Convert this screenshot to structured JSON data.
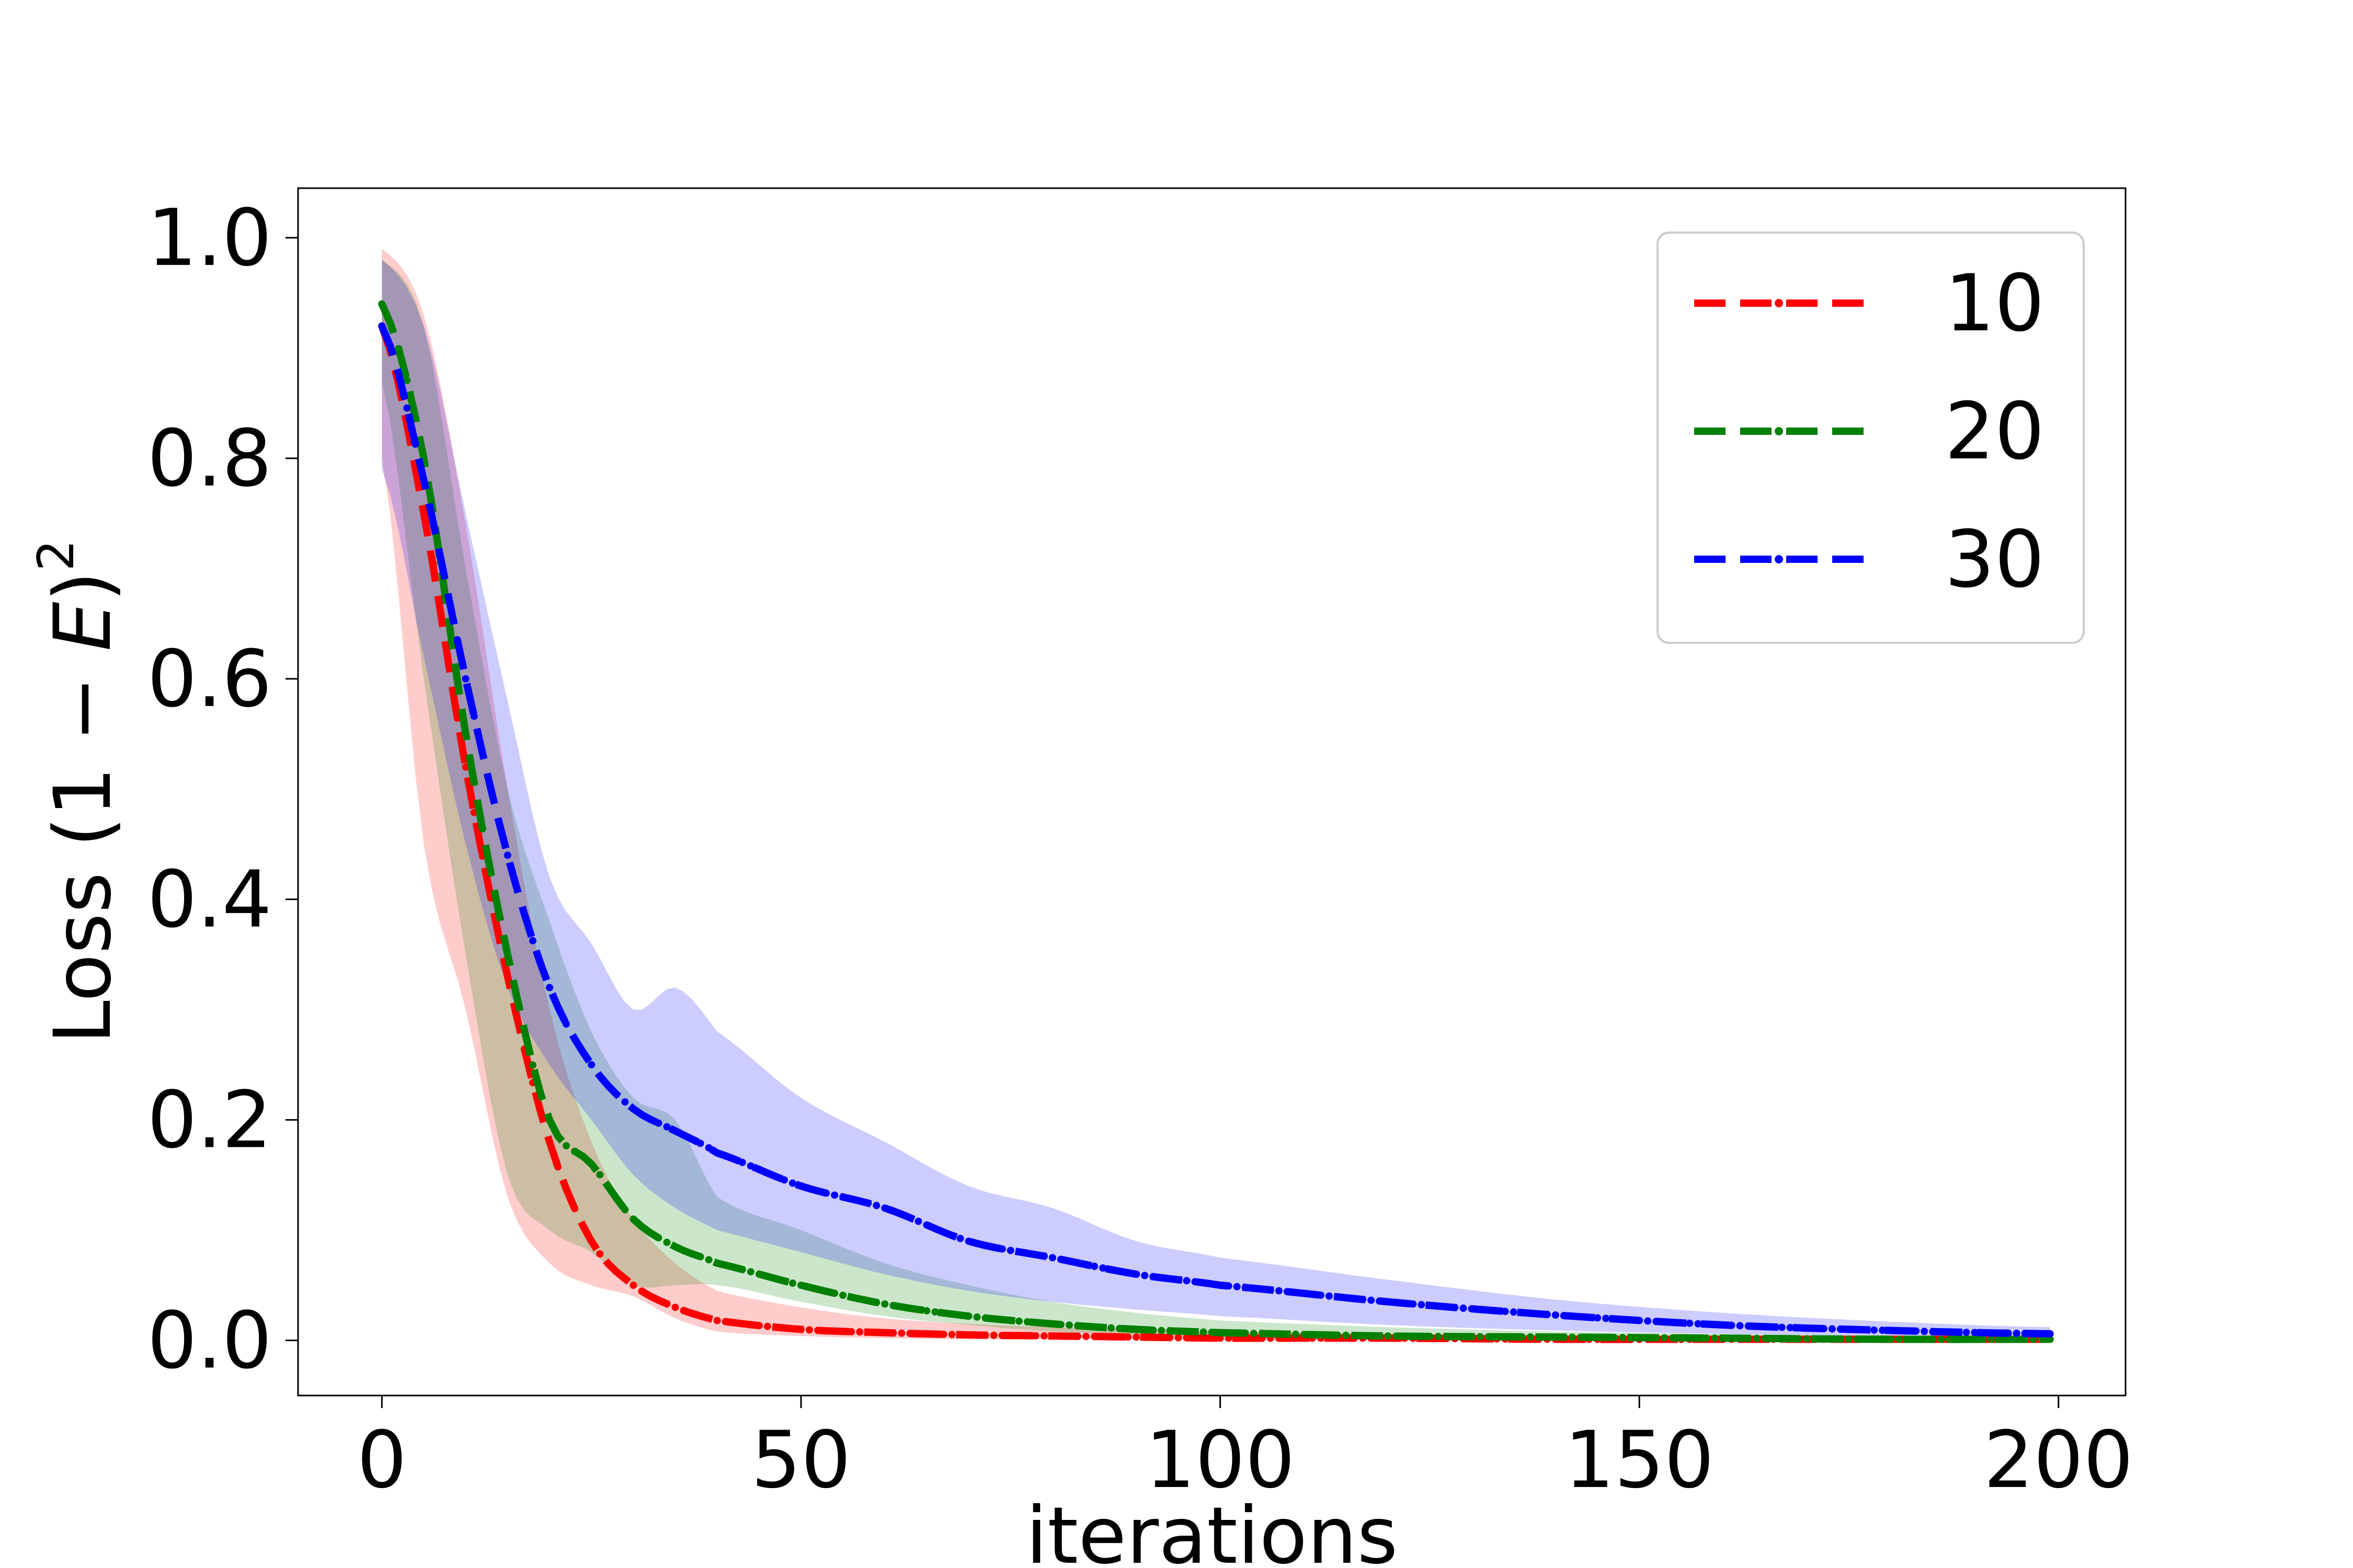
{
  "chart_data": {
    "type": "line",
    "xlabel": "iterations",
    "ylabel": "Loss (1 − E)²",
    "ylabel_parts": [
      "Loss (1 − ",
      "E",
      ")",
      "2"
    ],
    "xlim": [
      -10,
      208
    ],
    "ylim": [
      -0.05,
      1.045
    ],
    "xticks": [
      0,
      50,
      100,
      150,
      200
    ],
    "yticks": [
      0.0,
      0.2,
      0.4,
      0.6,
      0.8,
      1.0
    ],
    "xtick_labels": [
      "0",
      "50",
      "100",
      "150",
      "200"
    ],
    "ytick_labels": [
      "0.0",
      "0.2",
      "0.4",
      "0.6",
      "0.8",
      "1.0"
    ],
    "grid": false,
    "legend": {
      "placement": "top-right"
    },
    "x": [
      0,
      5,
      10,
      15,
      20,
      25,
      30,
      35,
      40,
      50,
      60,
      70,
      80,
      90,
      100,
      120,
      140,
      160,
      180,
      199
    ],
    "series": [
      {
        "name": "10",
        "color": "#ff0000",
        "fill": "#ff0000",
        "values": [
          0.92,
          0.75,
          0.52,
          0.33,
          0.18,
          0.09,
          0.05,
          0.03,
          0.018,
          0.01,
          0.007,
          0.005,
          0.004,
          0.003,
          0.002,
          0.002,
          0.001,
          0.001,
          0.001,
          0.001
        ],
        "upper": [
          0.99,
          0.93,
          0.74,
          0.5,
          0.3,
          0.18,
          0.11,
          0.07,
          0.045,
          0.03,
          0.02,
          0.015,
          0.012,
          0.01,
          0.008,
          0.006,
          0.005,
          0.004,
          0.003,
          0.003
        ],
        "lower": [
          0.8,
          0.45,
          0.3,
          0.13,
          0.07,
          0.05,
          0.04,
          0.02,
          0.008,
          0.004,
          0.002,
          0.001,
          0.001,
          0.001,
          0.0,
          0.0,
          0.0,
          0.0,
          0.0,
          0.0
        ]
      },
      {
        "name": "20",
        "color": "#008000",
        "fill": "#008000",
        "values": [
          0.94,
          0.8,
          0.55,
          0.35,
          0.2,
          0.16,
          0.11,
          0.085,
          0.07,
          0.05,
          0.033,
          0.022,
          0.015,
          0.01,
          0.007,
          0.004,
          0.003,
          0.002,
          0.001,
          0.001
        ],
        "upper": [
          0.98,
          0.92,
          0.7,
          0.5,
          0.38,
          0.28,
          0.22,
          0.2,
          0.13,
          0.1,
          0.07,
          0.05,
          0.035,
          0.025,
          0.018,
          0.012,
          0.008,
          0.006,
          0.004,
          0.003
        ],
        "lower": [
          0.87,
          0.6,
          0.35,
          0.15,
          0.1,
          0.08,
          0.05,
          0.05,
          0.05,
          0.035,
          0.022,
          0.014,
          0.008,
          0.005,
          0.003,
          0.001,
          0.001,
          0.0,
          0.0,
          0.0
        ]
      },
      {
        "name": "30",
        "color": "#0000ff",
        "fill": "#0000ff",
        "values": [
          0.92,
          0.78,
          0.6,
          0.44,
          0.32,
          0.25,
          0.21,
          0.19,
          0.17,
          0.14,
          0.12,
          0.09,
          0.075,
          0.06,
          0.05,
          0.035,
          0.023,
          0.014,
          0.009,
          0.006
        ],
        "upper": [
          0.98,
          0.92,
          0.75,
          0.58,
          0.42,
          0.36,
          0.3,
          0.32,
          0.28,
          0.22,
          0.18,
          0.14,
          0.12,
          0.09,
          0.075,
          0.055,
          0.037,
          0.025,
          0.017,
          0.012
        ],
        "lower": [
          0.79,
          0.62,
          0.45,
          0.32,
          0.25,
          0.2,
          0.15,
          0.12,
          0.1,
          0.08,
          0.06,
          0.045,
          0.035,
          0.028,
          0.022,
          0.014,
          0.009,
          0.006,
          0.004,
          0.002
        ]
      }
    ]
  }
}
